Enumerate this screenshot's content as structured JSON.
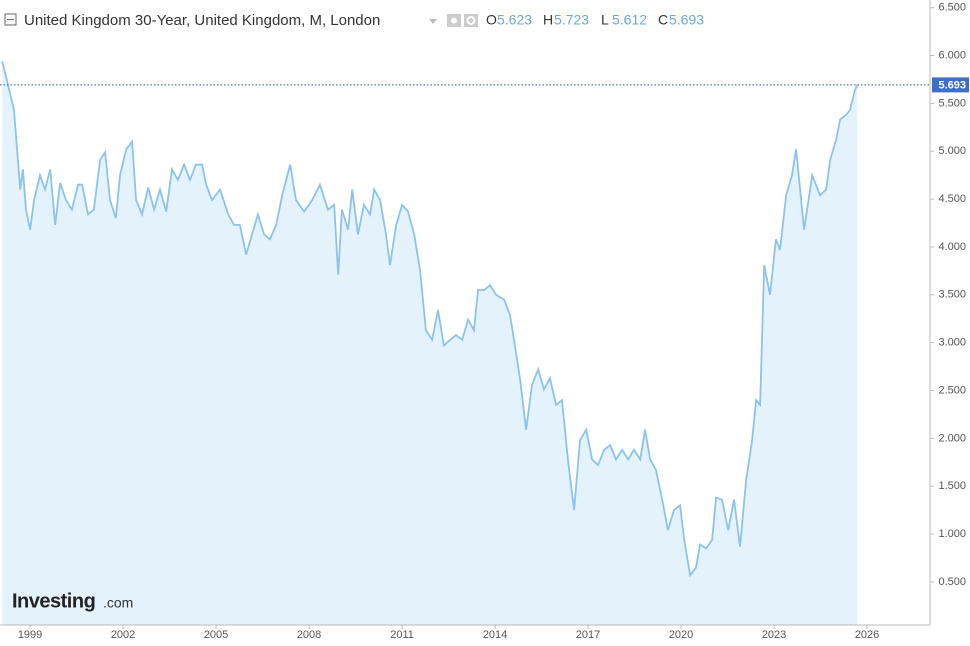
{
  "chart_data": {
    "type": "line",
    "title": "United Kingdom 30-Year, United Kingdom, M, London",
    "ohlc": [
      {
        "label": "O",
        "value": 5.623
      },
      {
        "label": "H",
        "value": 5.723
      },
      {
        "label": "L",
        "value": 5.612
      },
      {
        "label": "C",
        "value": 5.693
      }
    ],
    "logo": "Investing",
    "logo_suffix": ".com",
    "color": "#8ec3e8",
    "fill_color": "#e3f2fb",
    "x": [
      1998.1,
      1998.29,
      1998.48,
      1998.68,
      1998.77,
      1998.87,
      1999.0,
      1999.13,
      1999.32,
      1999.48,
      1999.65,
      1999.81,
      1999.97,
      2000.16,
      2000.35,
      2000.55,
      2000.68,
      2000.87,
      2001.06,
      2001.26,
      2001.42,
      2001.58,
      2001.77,
      2001.9,
      2002.1,
      2002.29,
      2002.42,
      2002.61,
      2002.81,
      2003.0,
      2003.19,
      2003.39,
      2003.58,
      2003.77,
      2003.97,
      2004.16,
      2004.35,
      2004.55,
      2004.68,
      2004.87,
      2005.13,
      2005.39,
      2005.58,
      2005.77,
      2005.97,
      2006.16,
      2006.35,
      2006.55,
      2006.74,
      2006.94,
      2007.13,
      2007.39,
      2007.58,
      2007.84,
      2008.1,
      2008.35,
      2008.61,
      2008.81,
      2008.94,
      2009.06,
      2009.26,
      2009.39,
      2009.58,
      2009.77,
      2009.97,
      2010.1,
      2010.29,
      2010.48,
      2010.61,
      2010.81,
      2011.0,
      2011.19,
      2011.39,
      2011.58,
      2011.77,
      2011.97,
      2012.16,
      2012.35,
      2012.55,
      2012.74,
      2012.94,
      2013.13,
      2013.32,
      2013.45,
      2013.65,
      2013.84,
      2014.03,
      2014.29,
      2014.48,
      2014.61,
      2014.81,
      2015.0,
      2015.19,
      2015.39,
      2015.58,
      2015.77,
      2015.97,
      2016.16,
      2016.35,
      2016.55,
      2016.74,
      2016.94,
      2017.13,
      2017.32,
      2017.52,
      2017.71,
      2017.9,
      2018.1,
      2018.29,
      2018.48,
      2018.68,
      2018.84,
      2019.0,
      2019.19,
      2019.39,
      2019.58,
      2019.77,
      2019.97,
      2020.1,
      2020.29,
      2020.48,
      2020.61,
      2020.81,
      2021.0,
      2021.13,
      2021.32,
      2021.52,
      2021.71,
      2021.9,
      2022.1,
      2022.29,
      2022.42,
      2022.55,
      2022.68,
      2022.87,
      2023.06,
      2023.19,
      2023.39,
      2023.58,
      2023.71,
      2023.97,
      2024.23,
      2024.48,
      2024.68,
      2024.81,
      2025.0,
      2025.13,
      2025.32,
      2025.45,
      2025.61,
      2025.68
    ],
    "values": [
      5.94,
      5.69,
      5.43,
      4.6,
      4.81,
      4.39,
      4.18,
      4.49,
      4.75,
      4.6,
      4.81,
      4.23,
      4.67,
      4.49,
      4.39,
      4.65,
      4.65,
      4.34,
      4.39,
      4.91,
      4.99,
      4.49,
      4.3,
      4.75,
      5.02,
      5.1,
      4.49,
      4.34,
      4.62,
      4.39,
      4.6,
      4.37,
      4.81,
      4.7,
      4.86,
      4.7,
      4.86,
      4.86,
      4.65,
      4.49,
      4.6,
      4.34,
      4.23,
      4.23,
      3.92,
      4.13,
      4.34,
      4.13,
      4.08,
      4.23,
      4.54,
      4.86,
      4.49,
      4.37,
      4.49,
      4.65,
      4.39,
      4.44,
      3.71,
      4.39,
      4.18,
      4.6,
      4.13,
      4.44,
      4.34,
      4.6,
      4.49,
      4.13,
      3.81,
      4.23,
      4.44,
      4.37,
      4.13,
      3.76,
      3.13,
      3.03,
      3.34,
      2.97,
      3.03,
      3.08,
      3.03,
      3.24,
      3.13,
      3.55,
      3.55,
      3.6,
      3.5,
      3.45,
      3.29,
      3.03,
      2.61,
      2.09,
      2.56,
      2.72,
      2.51,
      2.63,
      2.35,
      2.4,
      1.78,
      1.25,
      1.98,
      2.09,
      1.78,
      1.72,
      1.88,
      1.93,
      1.78,
      1.88,
      1.78,
      1.88,
      1.78,
      2.09,
      1.78,
      1.67,
      1.36,
      1.04,
      1.25,
      1.3,
      0.94,
      0.57,
      0.65,
      0.89,
      0.85,
      0.94,
      1.38,
      1.36,
      1.04,
      1.36,
      0.87,
      1.57,
      1.98,
      2.4,
      2.35,
      3.81,
      3.5,
      4.08,
      3.97,
      4.54,
      4.75,
      5.02,
      4.18,
      4.75,
      4.54,
      4.6,
      4.91,
      5.12,
      5.33,
      5.38,
      5.43,
      5.64,
      5.693
    ],
    "xlim": [
      1998.03,
      2028.03
    ],
    "xticks": [
      1999,
      2002,
      2005,
      2008,
      2011,
      2014,
      2017,
      2020,
      2023,
      2026
    ],
    "ylim": [
      0.05,
      6.58
    ],
    "yticks": [
      {
        "value": 0.5,
        "label": "0.500"
      },
      {
        "value": 1,
        "label": "1.000"
      },
      {
        "value": 1.5,
        "label": "1.500"
      },
      {
        "value": 2,
        "label": "2.000"
      },
      {
        "value": 2.5,
        "label": "2.500"
      },
      {
        "value": 3,
        "label": "3.000"
      },
      {
        "value": 3.5,
        "label": "3.500"
      },
      {
        "value": 4,
        "label": "4.000"
      },
      {
        "value": 4.5,
        "label": "4.500"
      },
      {
        "value": 5,
        "label": "5.000"
      },
      {
        "value": 5.5,
        "label": "5.500"
      },
      {
        "value": 6,
        "label": "6.000"
      },
      {
        "value": 6.5,
        "label": "6.500"
      }
    ]
  }
}
